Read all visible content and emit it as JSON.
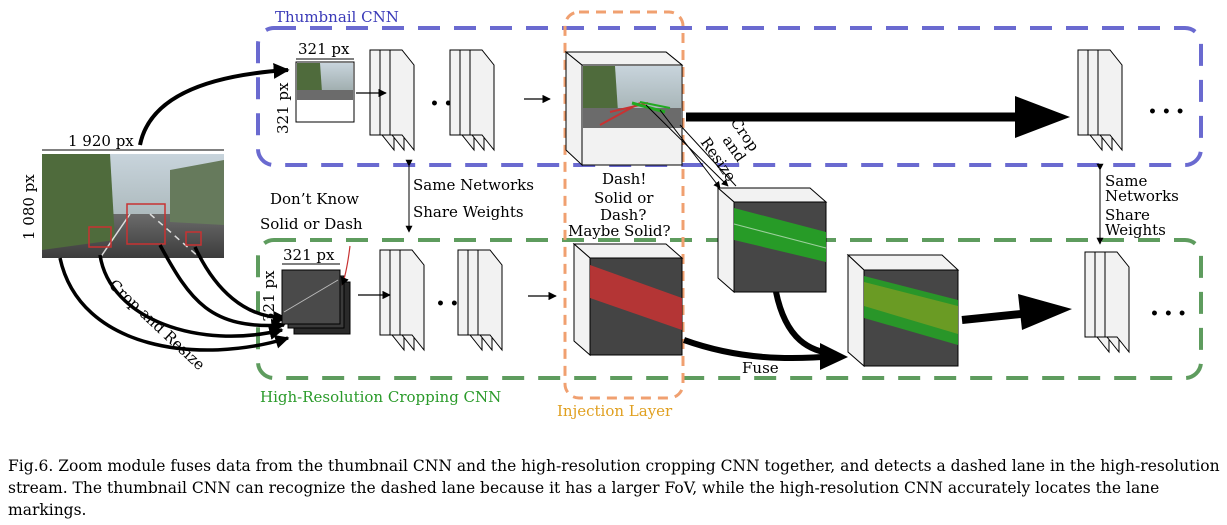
{
  "labels": {
    "thumbnail_cnn": "Thumbnail CNN",
    "highres_cnn": "High-Resolution Cropping CNN",
    "injection_layer": "Injection Layer",
    "width_full": "1 920 px",
    "height_full": "1 080 px",
    "crop_w_top": "321 px",
    "crop_h_top": "321 px",
    "crop_w_bottom": "321 px",
    "crop_h_bottom": "321 px",
    "crop_and_resize": "Crop and Resize",
    "crop_top_1": "Crop",
    "crop_top_2": "and",
    "crop_top_3": "Resize",
    "dont_know_1": "Don’t Know",
    "dont_know_2": "Solid or Dash",
    "same_networks": "Same Networks",
    "share_weights": "Share Weights",
    "same_right_1": "Same",
    "same_right_2": "Networks",
    "same_right_3": "Share",
    "same_right_4": "Weights",
    "dash_1": "Dash!",
    "dash_2": "Solid or",
    "dash_3": "Dash?",
    "dash_4": "Maybe Solid?",
    "fuse": "Fuse",
    "ellipsis": "• • •"
  },
  "caption": "Fig.6. Zoom module fuses data from the thumbnail CNN and the high-resolution cropping CNN together, and detects a dashed lane in the high-resolution stream. The thumbnail CNN can recognize the dashed lane because it has a larger FoV, while the high-resolution CNN accurately locates the lane markings.",
  "colors": {
    "thumbnail_box": "#6a6ad0",
    "highres_box": "#5e9c5e",
    "injection_box": "#f0a070",
    "thumb_label": "#3a3ab8",
    "highres_label": "#2a9a2a",
    "injection_label": "#e0a020",
    "red_overlay": "#c83232",
    "green_overlay": "#22aa22"
  }
}
